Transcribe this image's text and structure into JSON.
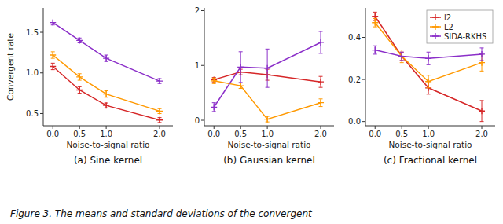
{
  "caption": "Figure 3. The means and standard deviations of the convergent",
  "chart_data": [
    {
      "type": "line",
      "title": "(a) Sine kernel",
      "xlabel": "Noise-to-signal ratio",
      "ylabel": "Convergent rate",
      "x": [
        0,
        0.5,
        1,
        2
      ],
      "xlim": [
        -0.18,
        2.25
      ],
      "xticks": [
        {
          "value": 0,
          "label": "0.0"
        },
        0.5,
        {
          "value": 1,
          "label": "1.0"
        },
        {
          "value": 2,
          "label": "2.0"
        }
      ],
      "ylim": [
        0.35,
        1.8
      ],
      "yticks": [
        0.5,
        {
          "value": 1.0,
          "label": "1.0"
        },
        1.5
      ],
      "grid": false,
      "legend": false,
      "series": [
        {
          "name": "l2",
          "color": "#d62728",
          "marker": "plus",
          "values": [
            1.08,
            0.79,
            0.6,
            0.42
          ],
          "errors": [
            0.04,
            0.04,
            0.03,
            0.03
          ]
        },
        {
          "name": "L2",
          "color": "#ff9900",
          "marker": "plus",
          "values": [
            1.22,
            0.95,
            0.74,
            0.53
          ],
          "errors": [
            0.04,
            0.04,
            0.04,
            0.03
          ]
        },
        {
          "name": "SIDA-RKHS",
          "color": "#8b2fc9",
          "marker": "plus",
          "values": [
            1.62,
            1.4,
            1.18,
            0.9
          ],
          "errors": [
            0.03,
            0.03,
            0.04,
            0.03
          ]
        }
      ]
    },
    {
      "type": "line",
      "title": "(b) Gaussian kernel",
      "xlabel": "Noise-to-signal ratio",
      "x": [
        0,
        0.5,
        1,
        2
      ],
      "xlim": [
        -0.18,
        2.25
      ],
      "xticks": [
        {
          "value": 0,
          "label": "0.0"
        },
        0.5,
        {
          "value": 1,
          "label": "1.0"
        },
        {
          "value": 2,
          "label": "2.0"
        }
      ],
      "ylim": [
        -0.1,
        2.05
      ],
      "yticks": [
        0,
        1,
        2
      ],
      "grid": false,
      "legend": false,
      "series": [
        {
          "name": "l2",
          "color": "#d62728",
          "marker": "plus",
          "values": [
            0.74,
            0.88,
            0.83,
            0.7
          ],
          "errors": [
            0.04,
            0.05,
            0.1,
            0.1
          ]
        },
        {
          "name": "L2",
          "color": "#ff9900",
          "marker": "plus",
          "values": [
            0.72,
            0.63,
            0.02,
            0.32
          ],
          "errors": [
            0.05,
            0.05,
            0.05,
            0.07
          ]
        },
        {
          "name": "SIDA-RKHS",
          "color": "#8b2fc9",
          "marker": "plus",
          "values": [
            0.24,
            0.97,
            0.95,
            1.42
          ],
          "errors": [
            0.08,
            0.28,
            0.35,
            0.2
          ]
        }
      ]
    },
    {
      "type": "line",
      "title": "(c) Fractional kernel",
      "xlabel": "Noise-to-signal ratio",
      "x": [
        0,
        0.5,
        1,
        2
      ],
      "xlim": [
        -0.18,
        2.25
      ],
      "xticks": [
        {
          "value": 0,
          "label": "0.0"
        },
        0.5,
        {
          "value": 1,
          "label": "1.0"
        },
        {
          "value": 2,
          "label": "2.0"
        }
      ],
      "ylim": [
        -0.02,
        0.54
      ],
      "yticks": [
        {
          "value": 0,
          "label": "0.0"
        },
        0.2,
        0.4
      ],
      "grid": false,
      "legend": "upper right",
      "series": [
        {
          "name": "l2",
          "color": "#d62728",
          "marker": "plus",
          "values": [
            0.5,
            0.31,
            0.16,
            0.05
          ],
          "errors": [
            0.02,
            0.02,
            0.03,
            0.05
          ]
        },
        {
          "name": "L2",
          "color": "#ff9900",
          "marker": "plus",
          "values": [
            0.47,
            0.31,
            0.19,
            0.28
          ],
          "errors": [
            0.02,
            0.03,
            0.03,
            0.04
          ]
        },
        {
          "name": "SIDA-RKHS",
          "color": "#8b2fc9",
          "marker": "plus",
          "values": [
            0.34,
            0.31,
            0.3,
            0.32
          ],
          "errors": [
            0.02,
            0.02,
            0.03,
            0.03
          ]
        }
      ]
    }
  ]
}
